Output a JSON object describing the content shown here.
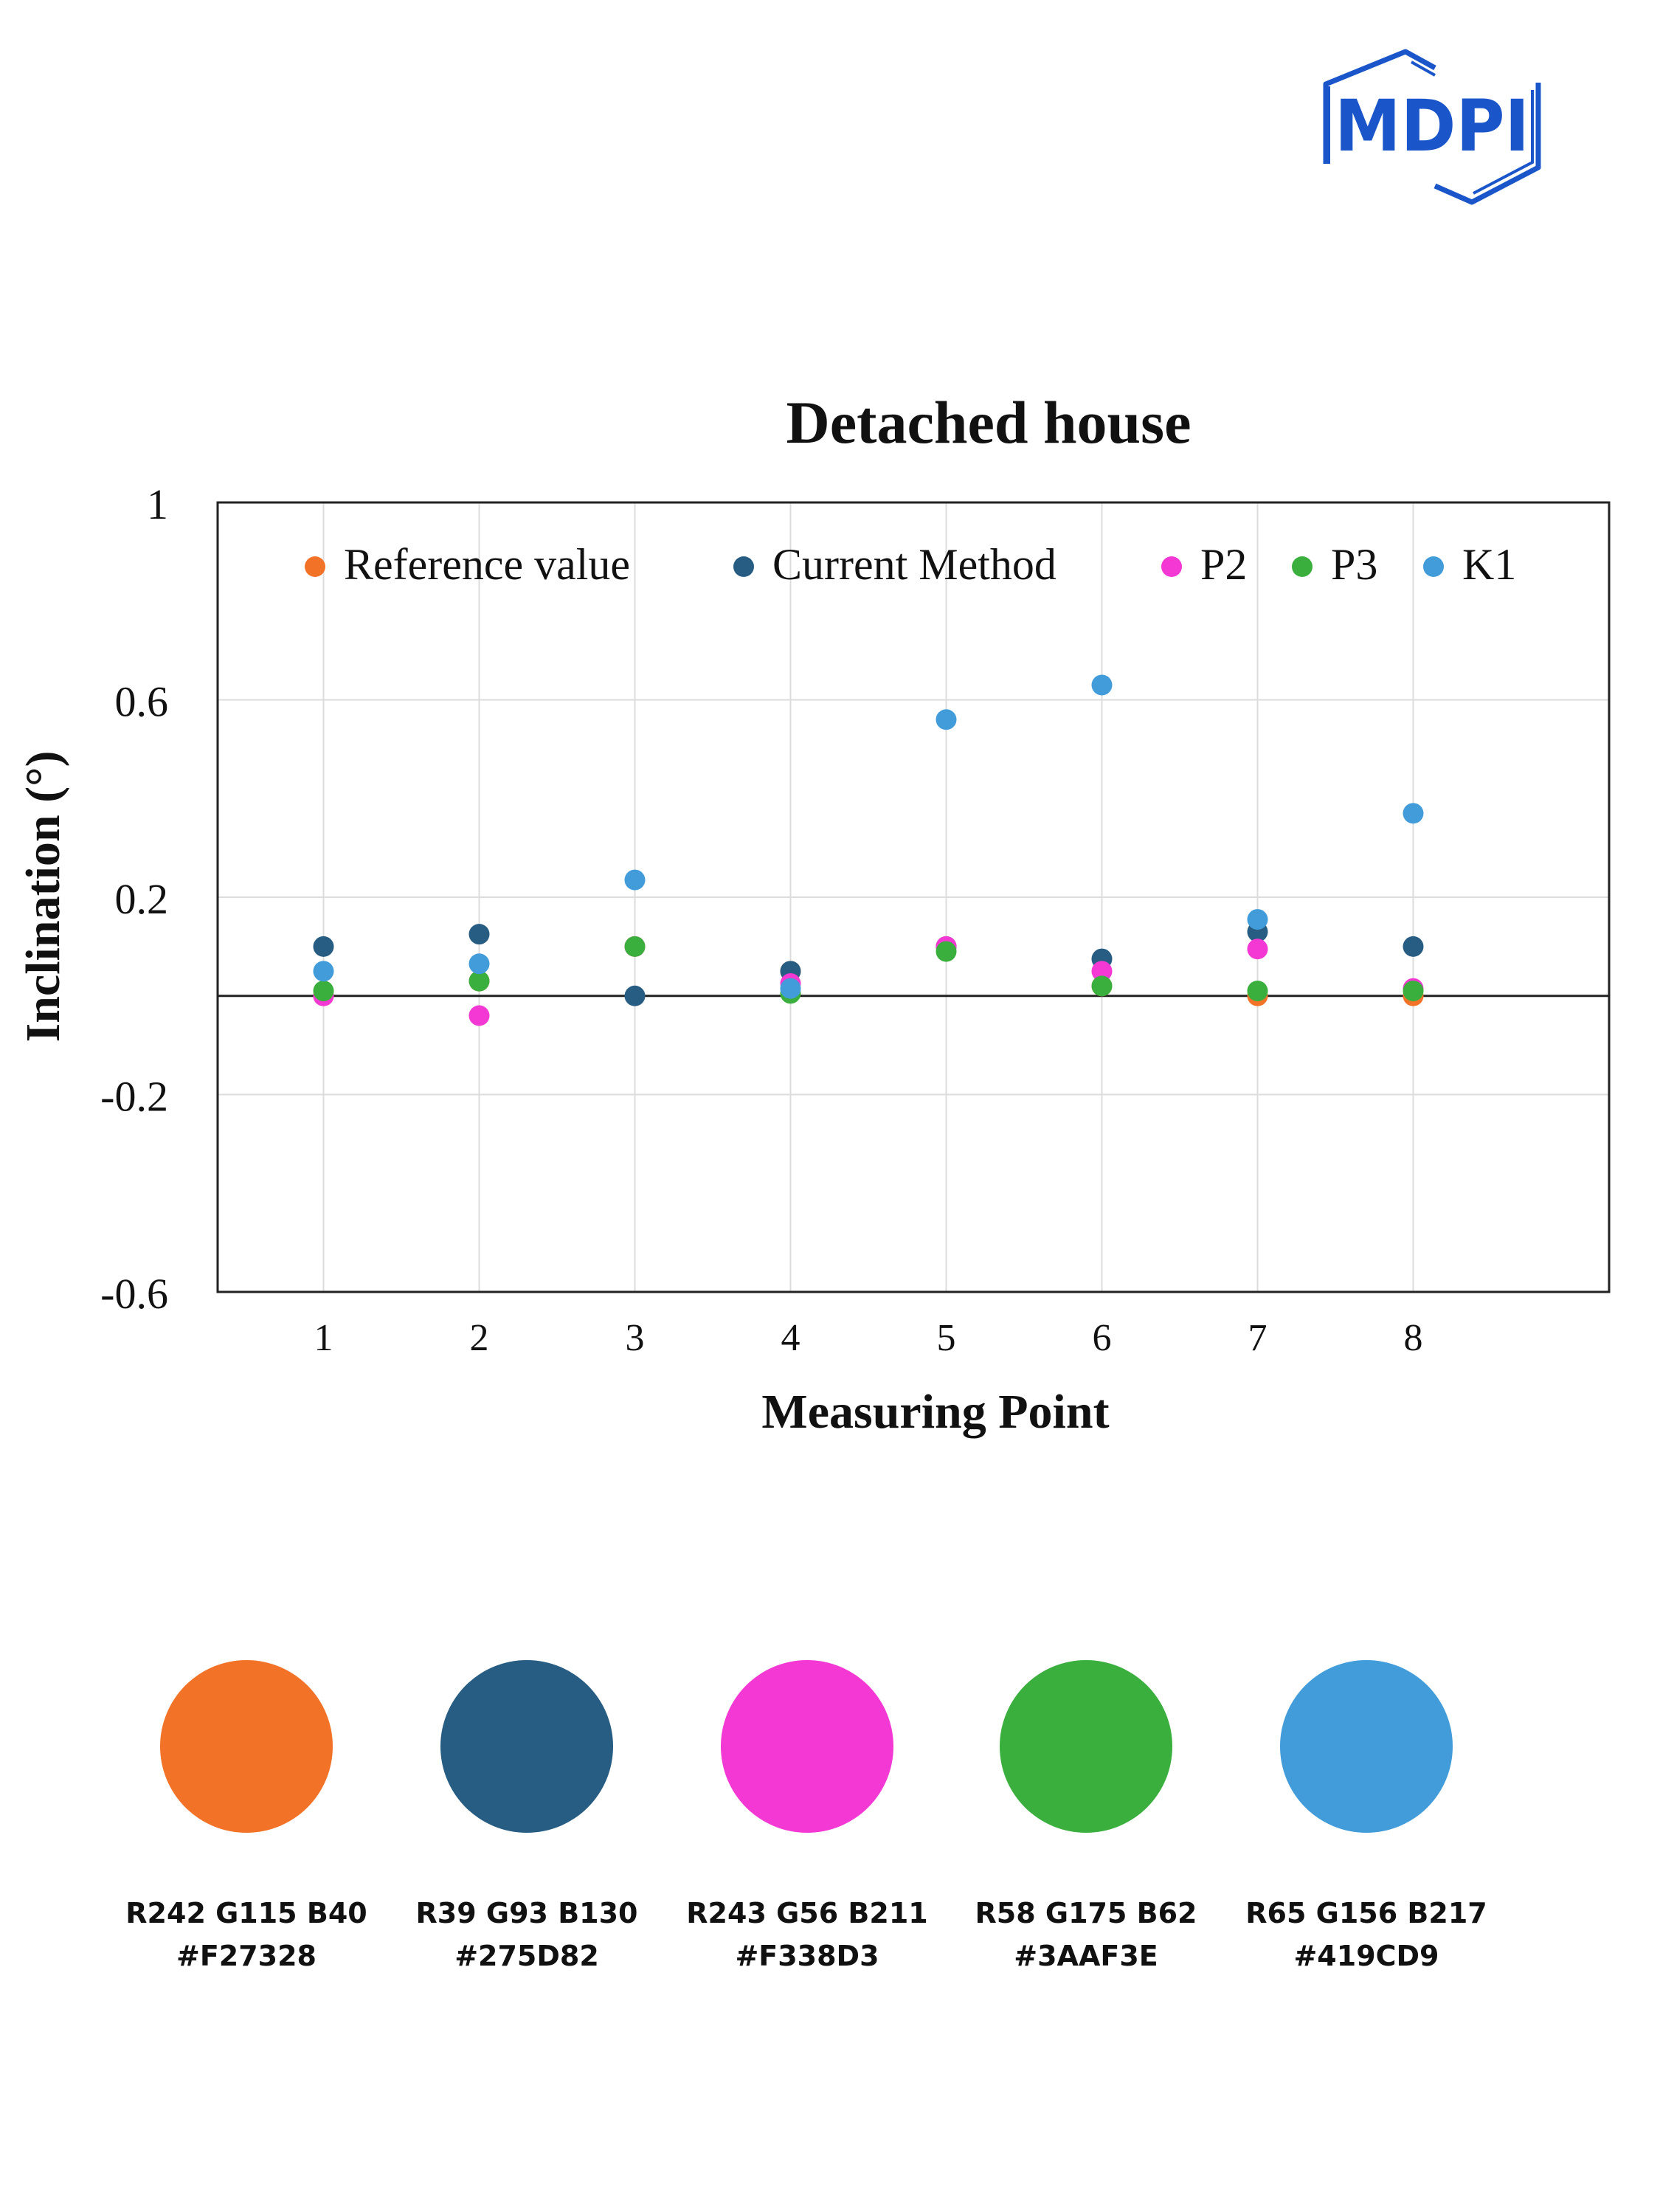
{
  "logo": {
    "text": "MDPI",
    "color": "#1a55c9"
  },
  "chart_data": {
    "type": "scatter",
    "title": "Detached house",
    "xlabel": "Measuring Point",
    "ylabel": "Inclination (°)",
    "ylim": [
      -0.6,
      1
    ],
    "yticks": [
      1,
      0.6,
      0.2,
      -0.2,
      -0.6
    ],
    "ytick_labels": [
      "1",
      "0.6",
      "0.2",
      "-0.2",
      "-0.6"
    ],
    "x": [
      1,
      2,
      3,
      4,
      5,
      6,
      7,
      8
    ],
    "xlim": [
      0,
      9
    ],
    "legend_position": "top",
    "series": [
      {
        "name": "Reference value",
        "color": "#F27328",
        "values": [
          0.0,
          0.03,
          0.1,
          0.05,
          0.1,
          0.02,
          0.0,
          0.0
        ]
      },
      {
        "name": "Current Method",
        "color": "#275D82",
        "values": [
          0.1,
          0.125,
          0.0,
          0.05,
          0.1,
          0.075,
          0.13,
          0.1
        ]
      },
      {
        "name": "P2",
        "color": "#F338D3",
        "values": [
          0.0,
          -0.04,
          0.1,
          0.025,
          0.1,
          0.05,
          0.095,
          0.015
        ]
      },
      {
        "name": "P3",
        "color": "#3AAF3E",
        "values": [
          0.01,
          0.03,
          0.1,
          0.005,
          0.09,
          0.02,
          0.01,
          0.01
        ]
      },
      {
        "name": "K1",
        "color": "#419CD9",
        "values": [
          0.05,
          0.065,
          0.235,
          0.015,
          0.56,
          0.63,
          0.155,
          0.37
        ]
      }
    ]
  },
  "swatches": [
    {
      "rgb": "R242 G115 B40",
      "hex": "#F27328",
      "color": "#F27328"
    },
    {
      "rgb": "R39 G93 B130",
      "hex": "#275D82",
      "color": "#275D82"
    },
    {
      "rgb": "R243 G56 B211",
      "hex": "#F338D3",
      "color": "#F338D3"
    },
    {
      "rgb": "R58 G175 B62",
      "hex": "#3AAF3E",
      "color": "#3AAF3E"
    },
    {
      "rgb": "R65 G156 B217",
      "hex": "#419CD9",
      "color": "#419CD9"
    }
  ]
}
